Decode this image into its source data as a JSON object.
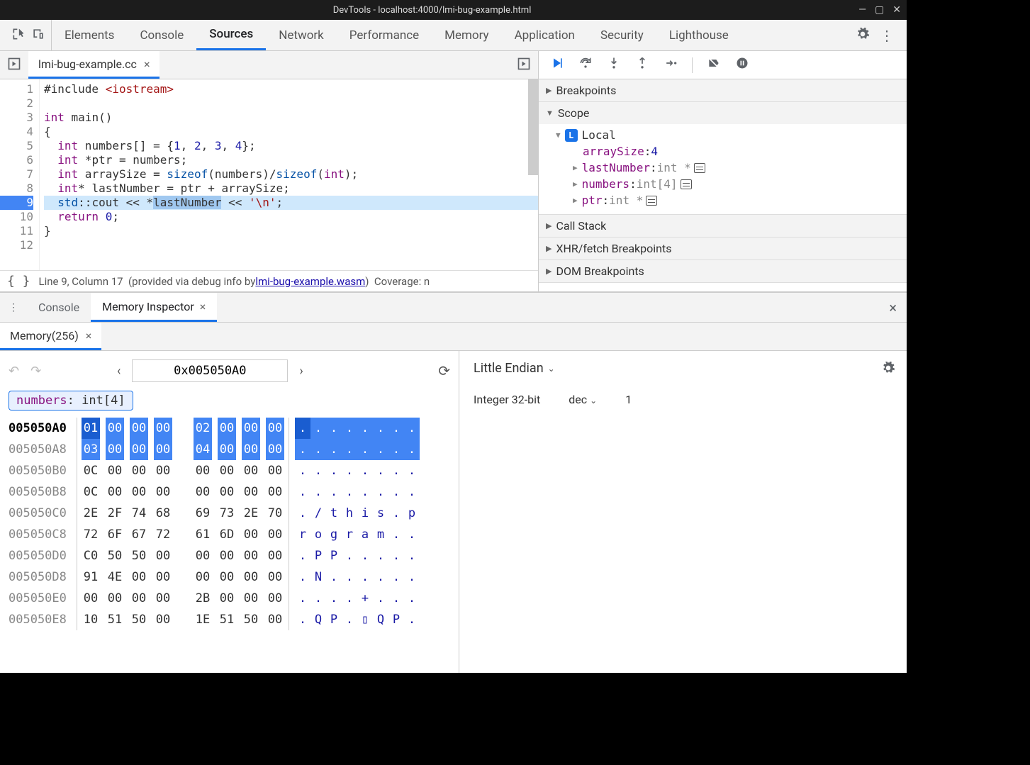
{
  "window": {
    "title": "DevTools - localhost:4000/lmi-bug-example.html"
  },
  "main_tabs": [
    "Elements",
    "Console",
    "Sources",
    "Network",
    "Performance",
    "Memory",
    "Application",
    "Security",
    "Lighthouse"
  ],
  "active_main_tab": "Sources",
  "file_tab": {
    "name": "lmi-bug-example.cc"
  },
  "code": {
    "lines": [
      {
        "n": 1,
        "html": "#include <span class='kw-hdr'>&lt;iostream&gt;</span>"
      },
      {
        "n": 2,
        "html": ""
      },
      {
        "n": 3,
        "html": "<span class='kw-type'>int</span> main()"
      },
      {
        "n": 4,
        "html": "{"
      },
      {
        "n": 5,
        "html": "  <span class='kw-type'>int</span> numbers[] = {<span class='kw-num'>1</span>, <span class='kw-num'>2</span>, <span class='kw-num'>3</span>, <span class='kw-num'>4</span>};"
      },
      {
        "n": 6,
        "html": "  <span class='kw-type'>int</span> *ptr = numbers;"
      },
      {
        "n": 7,
        "html": "  <span class='kw-type'>int</span> arraySize = <span class='kw-id'>sizeof</span>(numbers)/<span class='kw-id'>sizeof</span>(<span class='kw-type'>int</span>);"
      },
      {
        "n": 8,
        "html": "  <span class='kw-type'>int</span>* lastNumber = ptr + arraySize;"
      },
      {
        "n": 9,
        "html": "  <span class='kw-id'>std</span>::cout &lt;&lt; *<span class='sel'>lastNumber</span> &lt;&lt; <span class='kw-str'>'\\n'</span>;",
        "current": true
      },
      {
        "n": 10,
        "html": "  <span class='kw-type'>return</span> <span class='kw-num'>0</span>;"
      },
      {
        "n": 11,
        "html": "}"
      },
      {
        "n": 12,
        "html": ""
      }
    ]
  },
  "status": {
    "pos": "Line 9, Column 17",
    "provided": "(provided via debug info by ",
    "link": "lmi-bug-example.wasm",
    "coverage": "Coverage: n"
  },
  "debugger": {
    "sections": [
      "Breakpoints",
      "Scope",
      "Call Stack",
      "XHR/fetch Breakpoints",
      "DOM Breakpoints"
    ],
    "local_label": "Local",
    "vars": [
      {
        "name": "arraySize",
        "sep": ": ",
        "val": "4"
      },
      {
        "name": "lastNumber",
        "sep": ": ",
        "type": "int *",
        "mem": true,
        "tri": true
      },
      {
        "name": "numbers",
        "sep": ": ",
        "type": "int[4]",
        "mem": true,
        "tri": true
      },
      {
        "name": "ptr",
        "sep": ": ",
        "type": "int *",
        "mem": true,
        "tri": true
      }
    ]
  },
  "drawer": {
    "tabs": [
      "Console",
      "Memory Inspector"
    ],
    "active": "Memory Inspector",
    "mem_tab": "Memory(256)"
  },
  "hex": {
    "address": "0x005050A0",
    "object_pill": {
      "name": "numbers",
      "type": "int[4]"
    },
    "rows": [
      {
        "addr": "005050A0",
        "cur": true,
        "b": [
          "01",
          "00",
          "00",
          "00",
          "02",
          "00",
          "00",
          "00"
        ],
        "hl": [
          1,
          1,
          1,
          1,
          1,
          1,
          1,
          1
        ],
        "a": [
          ".",
          ".",
          ".",
          ".",
          ".",
          ".",
          ".",
          "."
        ],
        "ahl": [
          2,
          1,
          1,
          1,
          1,
          1,
          1,
          1
        ]
      },
      {
        "addr": "005050A8",
        "b": [
          "03",
          "00",
          "00",
          "00",
          "04",
          "00",
          "00",
          "00"
        ],
        "hl": [
          1,
          1,
          1,
          1,
          1,
          1,
          1,
          1
        ],
        "a": [
          ".",
          ".",
          ".",
          ".",
          ".",
          ".",
          ".",
          "."
        ],
        "ahl": [
          1,
          1,
          1,
          1,
          1,
          1,
          1,
          1
        ]
      },
      {
        "addr": "005050B0",
        "b": [
          "0C",
          "00",
          "00",
          "00",
          "00",
          "00",
          "00",
          "00"
        ],
        "a": [
          ".",
          ".",
          ".",
          ".",
          ".",
          ".",
          ".",
          "."
        ]
      },
      {
        "addr": "005050B8",
        "b": [
          "0C",
          "00",
          "00",
          "00",
          "00",
          "00",
          "00",
          "00"
        ],
        "a": [
          ".",
          ".",
          ".",
          ".",
          ".",
          ".",
          ".",
          "."
        ]
      },
      {
        "addr": "005050C0",
        "b": [
          "2E",
          "2F",
          "74",
          "68",
          "69",
          "73",
          "2E",
          "70"
        ],
        "a": [
          ".",
          "/",
          "t",
          "h",
          "i",
          "s",
          ".",
          "p"
        ]
      },
      {
        "addr": "005050C8",
        "b": [
          "72",
          "6F",
          "67",
          "72",
          "61",
          "6D",
          "00",
          "00"
        ],
        "a": [
          "r",
          "o",
          "g",
          "r",
          "a",
          "m",
          ".",
          "."
        ]
      },
      {
        "addr": "005050D0",
        "b": [
          "C0",
          "50",
          "50",
          "00",
          "00",
          "00",
          "00",
          "00"
        ],
        "a": [
          ".",
          "P",
          "P",
          ".",
          ".",
          ".",
          ".",
          "."
        ]
      },
      {
        "addr": "005050D8",
        "b": [
          "91",
          "4E",
          "00",
          "00",
          "00",
          "00",
          "00",
          "00"
        ],
        "a": [
          ".",
          "N",
          ".",
          ".",
          ".",
          ".",
          ".",
          "."
        ]
      },
      {
        "addr": "005050E0",
        "b": [
          "00",
          "00",
          "00",
          "00",
          "2B",
          "00",
          "00",
          "00"
        ],
        "a": [
          ".",
          ".",
          ".",
          ".",
          "+",
          ".",
          ".",
          "."
        ]
      },
      {
        "addr": "005050E8",
        "b": [
          "10",
          "51",
          "50",
          "00",
          "1E",
          "51",
          "50",
          "00"
        ],
        "a": [
          ".",
          "Q",
          "P",
          ".",
          "▯",
          "Q",
          "P",
          "."
        ]
      }
    ]
  },
  "value_pane": {
    "endian": "Little Endian",
    "type": "Integer 32-bit",
    "repr": "dec",
    "value": "1"
  }
}
